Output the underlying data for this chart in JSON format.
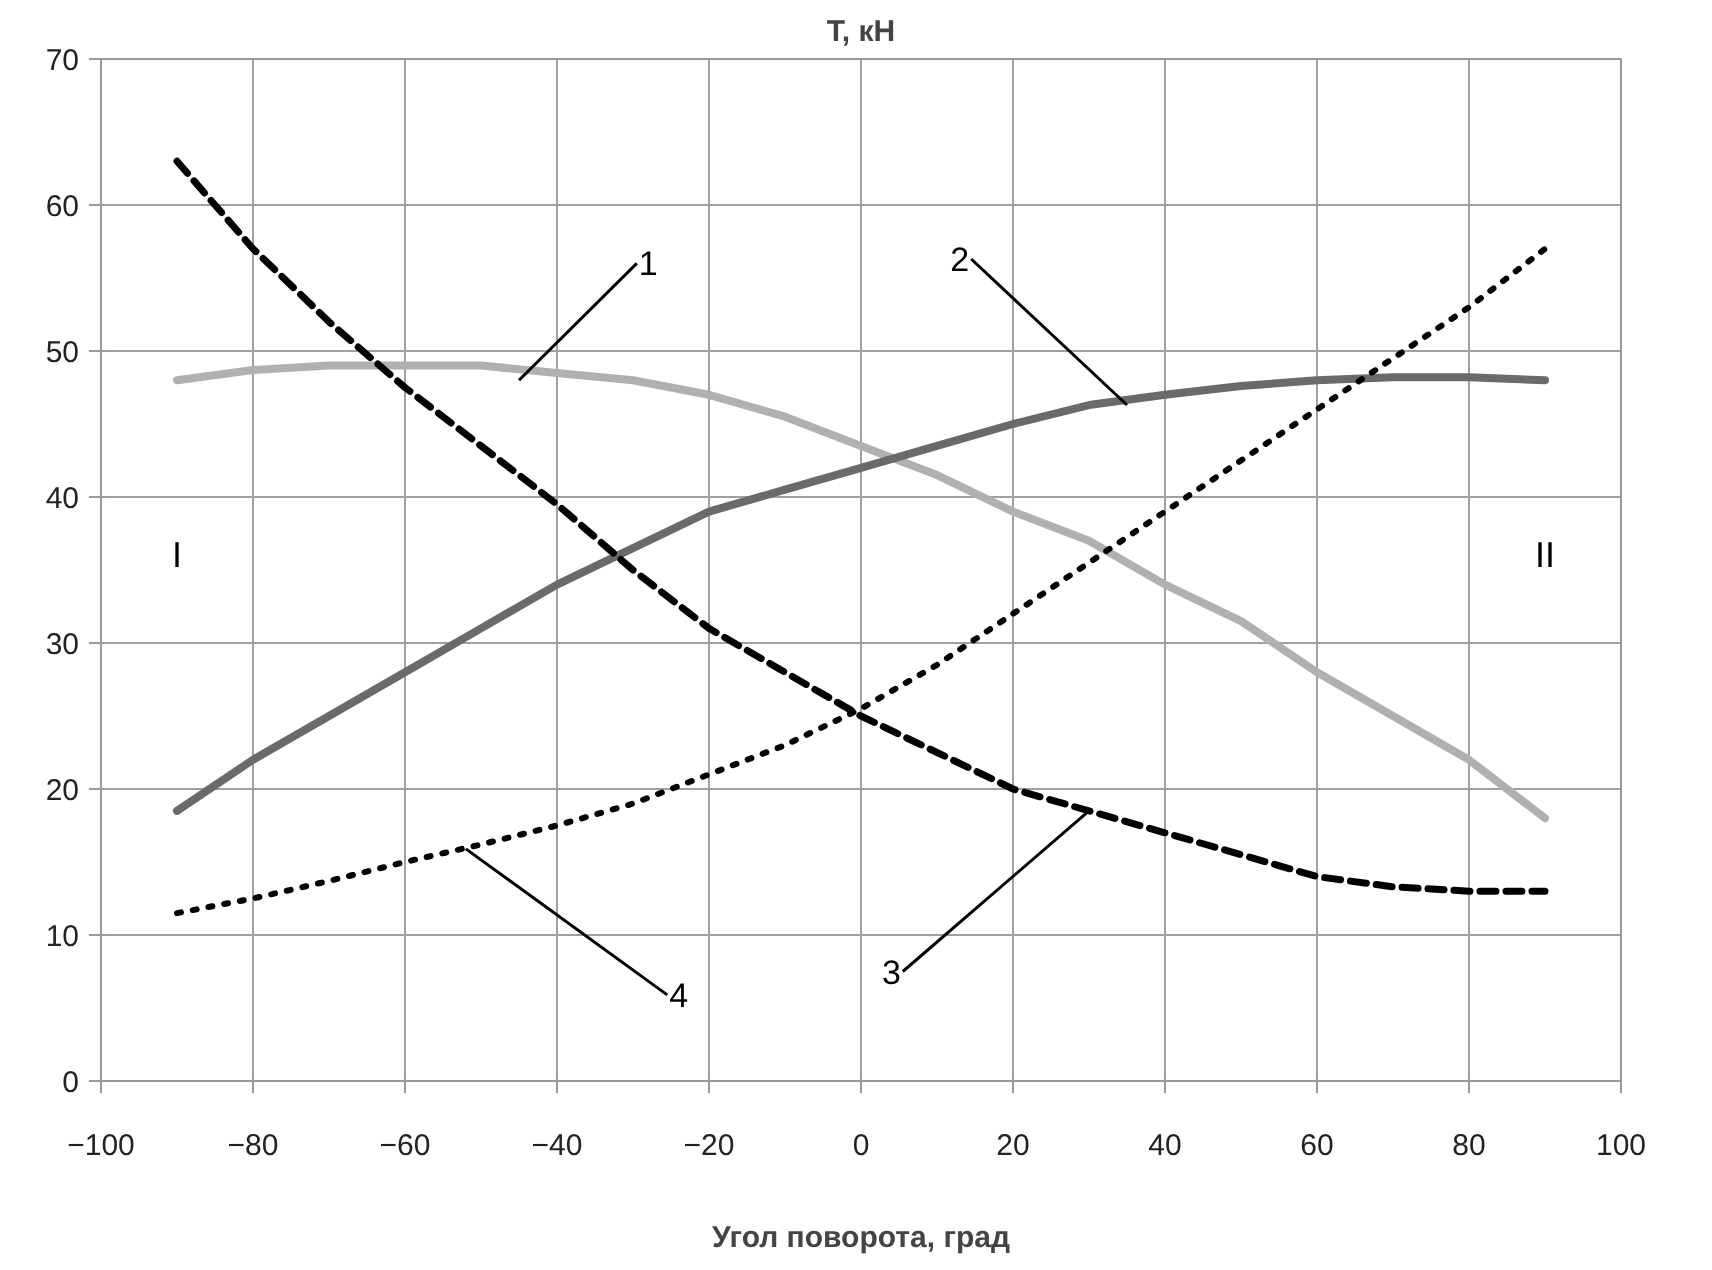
{
  "chart_data": {
    "type": "line",
    "ylabel": "T, кН",
    "xlabel": "Угол поворота, град",
    "x": [
      -90,
      -80,
      -70,
      -60,
      -50,
      -40,
      -30,
      -20,
      -10,
      0,
      10,
      20,
      30,
      40,
      50,
      60,
      70,
      80,
      90
    ],
    "xlim": [
      -100,
      100
    ],
    "xticks": [
      -100,
      -80,
      -60,
      -40,
      -20,
      0,
      20,
      40,
      60,
      80,
      100
    ],
    "ylim": [
      0,
      70
    ],
    "yticks": [
      0,
      10,
      20,
      30,
      40,
      50,
      60,
      70
    ],
    "grid": true,
    "marker": "none",
    "series": [
      {
        "color": "#b0b0b0",
        "line_style": "solid",
        "values": [
          48,
          48.7,
          49,
          49,
          49,
          48.5,
          48,
          47,
          45.5,
          43.5,
          41.5,
          39,
          37,
          34,
          31.5,
          28,
          25,
          22,
          18
        ]
      },
      {
        "color": "#6a6a6a",
        "line_style": "solid",
        "values": [
          18.5,
          22,
          25,
          28,
          31,
          34,
          36.5,
          39,
          40.5,
          42,
          43.5,
          45,
          46.3,
          47,
          47.6,
          48,
          48.2,
          48.2,
          48
        ]
      },
      {
        "color": "#000000",
        "line_style": "dashed",
        "values": [
          63,
          57,
          52,
          47.5,
          43.5,
          39.5,
          35,
          31,
          28,
          25,
          22.5,
          20,
          18.5,
          17,
          15.5,
          14,
          13.3,
          13,
          13
        ]
      },
      {
        "color": "#000000",
        "line_style": "dotted",
        "values": [
          11.5,
          12.5,
          13.7,
          15,
          16.2,
          17.5,
          19,
          21,
          23,
          25.5,
          28.5,
          32,
          35.5,
          39,
          42.5,
          46,
          49.5,
          53,
          57
        ]
      }
    ],
    "annotations": [
      {
        "text": "1",
        "x": -45,
        "y": 48
      },
      {
        "text": "2",
        "x": 35,
        "y": 46.3
      },
      {
        "text": "3",
        "x": 30,
        "y": 18.5
      },
      {
        "text": "4",
        "x": -52,
        "y": 15.9
      },
      "I",
      "II"
    ]
  }
}
